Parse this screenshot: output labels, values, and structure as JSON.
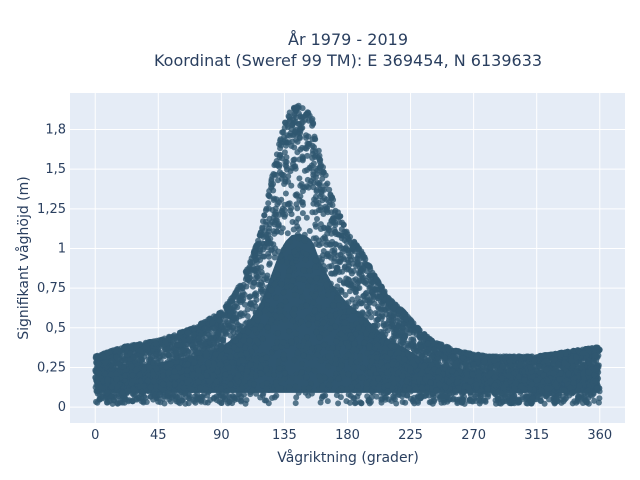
{
  "chart_data": {
    "type": "scatter",
    "title": "År 1979 - 2019",
    "subtitle": "Koordinat (Sweref 99 TM): E 369454, N 6139633",
    "xlabel": "Vågriktning (grader)",
    "ylabel": "Signifikant våghöjd (m)",
    "xlim": [
      -18,
      378
    ],
    "ylim": [
      -0.1,
      1.98
    ],
    "x_ticks": [
      0,
      45,
      90,
      135,
      180,
      225,
      270,
      315,
      360
    ],
    "x_tick_labels": [
      "0",
      "45",
      "90",
      "135",
      "180",
      "225",
      "270",
      "315",
      "360"
    ],
    "y_ticks": [
      0,
      0.25,
      0.5,
      0.75,
      1,
      1.25,
      1.5,
      1.75
    ],
    "y_tick_labels": [
      "0",
      "0,25",
      "0,5",
      "0,75",
      "1",
      "1,25",
      "1,5",
      "1,8"
    ],
    "grid": true,
    "colors": {
      "marker": "#2f5771",
      "plot_bg": "#e5ecf6",
      "grid": "#ffffff",
      "text": "#2a3f5f"
    },
    "series": [
      {
        "upper_envelope": [
          [
            0,
            0.32
          ],
          [
            20,
            0.38
          ],
          [
            45,
            0.42
          ],
          [
            70,
            0.5
          ],
          [
            90,
            0.6
          ],
          [
            100,
            0.72
          ],
          [
            110,
            0.9
          ],
          [
            118,
            1.1
          ],
          [
            125,
            1.4
          ],
          [
            130,
            1.62
          ],
          [
            135,
            1.8
          ],
          [
            140,
            1.88
          ],
          [
            145,
            1.9
          ],
          [
            150,
            1.88
          ],
          [
            155,
            1.82
          ],
          [
            160,
            1.6
          ],
          [
            170,
            1.3
          ],
          [
            180,
            1.1
          ],
          [
            190,
            0.98
          ],
          [
            200,
            0.82
          ],
          [
            210,
            0.68
          ],
          [
            220,
            0.6
          ],
          [
            230,
            0.5
          ],
          [
            240,
            0.42
          ],
          [
            260,
            0.35
          ],
          [
            280,
            0.32
          ],
          [
            315,
            0.32
          ],
          [
            345,
            0.36
          ],
          [
            360,
            0.38
          ]
        ],
        "lower_bound": 0.02,
        "x_range": [
          0,
          360
        ]
      }
    ]
  }
}
